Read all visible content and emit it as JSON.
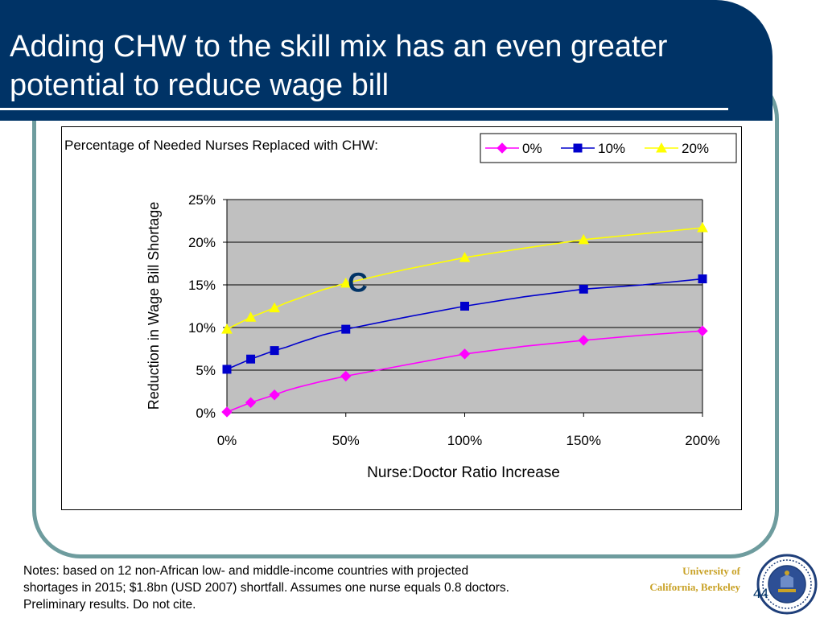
{
  "slide": {
    "title_lines": [
      "Adding CHW to the skill mix has an even greater",
      "potential to reduce wage bill"
    ],
    "notes_lines": [
      "Notes: based on 12 non-African low- and middle-income countries with projected",
      "shortages in 2015; $1.8bn (USD 2007) shortfall. Assumes one nurse equals 0.8 doctors.",
      "Preliminary results. Do not cite."
    ],
    "university_lines": [
      "University of",
      "California, Berkeley"
    ],
    "page_number": "44",
    "colors": {
      "title_bg": "#003366",
      "frame": "#6e9c9e",
      "university_text": "#c9a227"
    }
  },
  "chart_data": {
    "type": "line",
    "legend_title": "Percentage of Needed Nurses Replaced with CHW:",
    "legend_position": "top-right",
    "annotation": "C",
    "xlabel": "Nurse:Doctor Ratio Increase",
    "ylabel": "Reduction in Wage Bill Shortage",
    "xlim": [
      0,
      200
    ],
    "ylim": [
      0,
      25
    ],
    "x_ticks": [
      "0%",
      "50%",
      "100%",
      "150%",
      "200%"
    ],
    "y_ticks": [
      "0%",
      "5%",
      "10%",
      "15%",
      "20%",
      "25%"
    ],
    "plot_background": "#c0c0c0",
    "grid": true,
    "series": [
      {
        "name": "0%",
        "color": "#ff00ff",
        "marker": "diamond",
        "x": [
          0,
          10,
          20,
          50,
          100,
          150,
          200
        ],
        "y": [
          0.1,
          1.2,
          2.1,
          4.3,
          6.9,
          8.5,
          9.6
        ],
        "curve_x": [
          0,
          10,
          20,
          25,
          30,
          40,
          50,
          75,
          100,
          125,
          150,
          175,
          200
        ],
        "curve_y": [
          0.1,
          1.2,
          2.1,
          2.6,
          3.0,
          3.7,
          4.3,
          5.6,
          6.9,
          7.8,
          8.5,
          9.1,
          9.6
        ]
      },
      {
        "name": "10%",
        "color": "#0000cc",
        "marker": "square",
        "x": [
          0,
          10,
          20,
          50,
          100,
          150,
          200
        ],
        "y": [
          5.1,
          6.3,
          7.3,
          9.8,
          12.5,
          14.5,
          15.7
        ],
        "curve_x": [
          0,
          10,
          20,
          25,
          30,
          40,
          50,
          75,
          100,
          125,
          150,
          175,
          200
        ],
        "curve_y": [
          5.1,
          6.3,
          7.3,
          7.7,
          8.2,
          9.1,
          9.8,
          11.2,
          12.5,
          13.6,
          14.5,
          15.0,
          15.7
        ]
      },
      {
        "name": "20%",
        "color": "#ffff00",
        "marker": "triangle",
        "x": [
          0,
          10,
          20,
          50,
          100,
          150,
          200
        ],
        "y": [
          9.8,
          11.2,
          12.3,
          15.2,
          18.2,
          20.3,
          21.7
        ],
        "curve_x": [
          0,
          10,
          20,
          25,
          30,
          40,
          50,
          75,
          100,
          125,
          150,
          175,
          200
        ],
        "curve_y": [
          9.8,
          11.2,
          12.3,
          12.9,
          13.4,
          14.4,
          15.2,
          16.8,
          18.2,
          19.3,
          20.3,
          21.0,
          21.7
        ]
      }
    ]
  }
}
